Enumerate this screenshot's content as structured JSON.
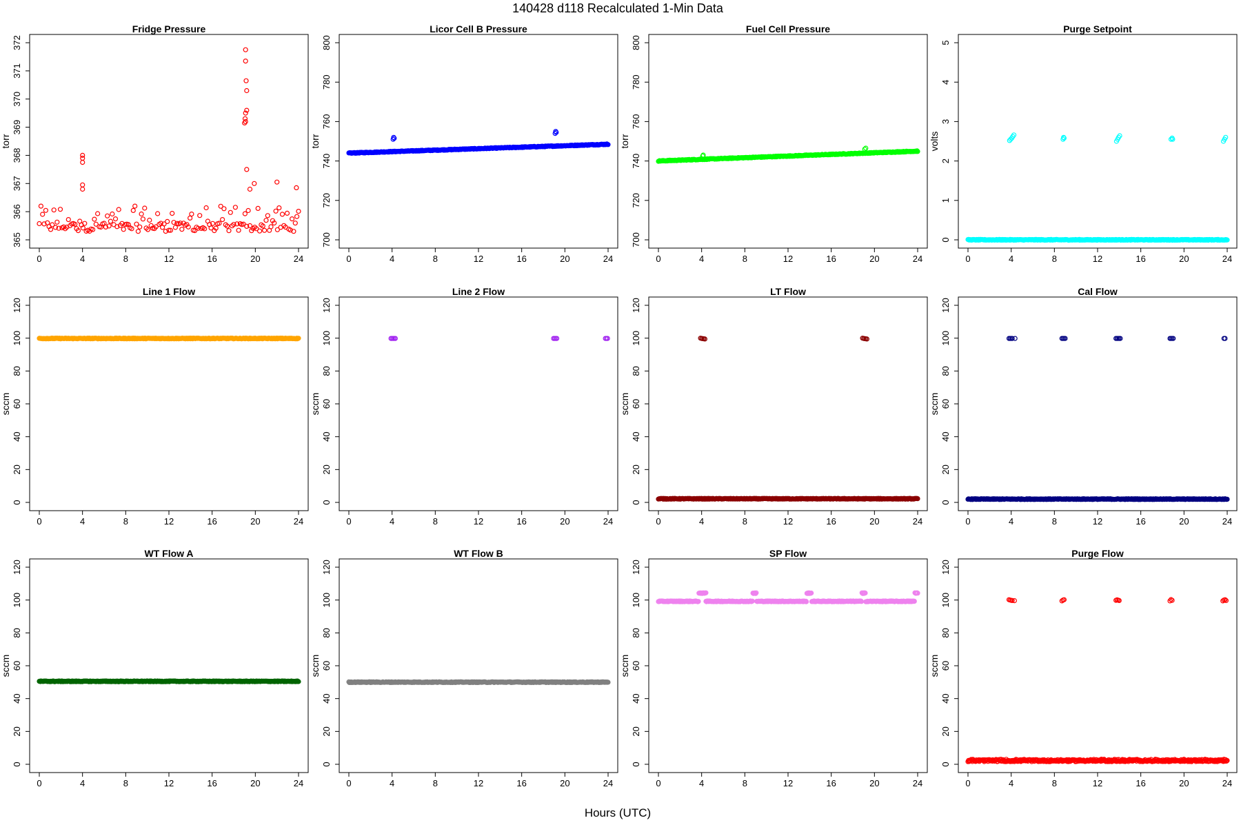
{
  "figure": {
    "title": "140428    d118    Recalculated 1-Min Data",
    "xlabel": "Hours (UTC)"
  },
  "chart_data": [
    {
      "type": "scatter",
      "title": "Fridge Pressure",
      "ylabel": "torr",
      "color": "#ff0000",
      "marker": "open",
      "xlim": [
        0,
        24
      ],
      "ylim": [
        365,
        372
      ],
      "xticks": [
        0,
        4,
        8,
        12,
        16,
        20,
        24
      ],
      "yticks": [
        365,
        366,
        367,
        368,
        369,
        370,
        371,
        372
      ],
      "series": [
        {
          "kind": "band",
          "x": [
            0,
            24
          ],
          "y_center": 365.45,
          "y_spread": 0.3,
          "scatter_spread": 0.9,
          "interval": 0.15
        },
        {
          "kind": "points",
          "x": [
            4.0,
            4.0,
            4.0,
            4.0,
            4.0,
            19.1,
            19.1,
            19.15,
            19.2,
            19.2,
            19.1,
            19.05,
            19.1,
            19.0,
            19.2,
            19.5,
            19.9,
            22.0,
            23.8
          ],
          "y": [
            368.0,
            367.9,
            367.75,
            366.95,
            366.8,
            371.75,
            371.35,
            370.65,
            370.3,
            369.6,
            369.5,
            369.3,
            369.2,
            369.15,
            367.5,
            366.8,
            367.0,
            367.05,
            366.85
          ]
        }
      ]
    },
    {
      "type": "scatter",
      "title": "Licor Cell B Pressure",
      "ylabel": "torr",
      "color": "#0000ff",
      "marker": "open",
      "xlim": [
        0,
        24
      ],
      "ylim": [
        700,
        800
      ],
      "xticks": [
        0,
        4,
        8,
        12,
        16,
        20,
        24
      ],
      "yticks": [
        700,
        720,
        740,
        760,
        780,
        800
      ],
      "series": [
        {
          "kind": "trend",
          "x": [
            0,
            24
          ],
          "y": [
            744,
            748.5
          ],
          "interval": 0.05
        },
        {
          "kind": "points",
          "x": [
            4.1,
            4.15,
            4.2,
            19.1,
            19.15,
            19.2
          ],
          "y": [
            751,
            752,
            751.5,
            754,
            755,
            754.5
          ]
        }
      ]
    },
    {
      "type": "scatter",
      "title": "Fuel Cell Pressure",
      "ylabel": "torr",
      "color": "#00ff00",
      "marker": "open",
      "xlim": [
        0,
        24
      ],
      "ylim": [
        700,
        800
      ],
      "xticks": [
        0,
        4,
        8,
        12,
        16,
        20,
        24
      ],
      "yticks": [
        700,
        720,
        740,
        760,
        780,
        800
      ],
      "series": [
        {
          "kind": "trend",
          "x": [
            0,
            24
          ],
          "y": [
            740,
            745
          ],
          "interval": 0.05
        },
        {
          "kind": "points",
          "x": [
            4.1,
            4.15,
            19.1,
            19.2
          ],
          "y": [
            742.5,
            743,
            746,
            746.5
          ]
        }
      ]
    },
    {
      "type": "scatter",
      "title": "Purge Setpoint",
      "ylabel": "volts",
      "color": "#00ffff",
      "marker": "open",
      "xlim": [
        0,
        24
      ],
      "ylim": [
        0,
        5
      ],
      "xticks": [
        0,
        4,
        8,
        12,
        16,
        20,
        24
      ],
      "yticks": [
        0,
        1,
        2,
        3,
        4,
        5
      ],
      "series": [
        {
          "kind": "trend",
          "x": [
            0,
            24
          ],
          "y": [
            0,
            0
          ],
          "interval": 0.05
        },
        {
          "kind": "points",
          "x": [
            3.85,
            3.95,
            4.05,
            4.15,
            4.25,
            8.8,
            8.85,
            8.9,
            13.75,
            13.85,
            13.95,
            14.05,
            18.8,
            18.9,
            18.95,
            23.65,
            23.75,
            23.85
          ],
          "y": [
            2.52,
            2.55,
            2.58,
            2.62,
            2.66,
            2.55,
            2.6,
            2.58,
            2.5,
            2.55,
            2.6,
            2.64,
            2.55,
            2.58,
            2.55,
            2.5,
            2.55,
            2.6
          ]
        }
      ]
    },
    {
      "type": "scatter",
      "title": "Line 1 Flow",
      "ylabel": "sccm",
      "color": "#ffa500",
      "marker": "open",
      "xlim": [
        0,
        24
      ],
      "ylim": [
        0,
        120
      ],
      "xticks": [
        0,
        4,
        8,
        12,
        16,
        20,
        24
      ],
      "yticks": [
        0,
        20,
        40,
        60,
        80,
        100,
        120
      ],
      "series": [
        {
          "kind": "trend",
          "x": [
            0,
            24
          ],
          "y": [
            99.8,
            99.8
          ],
          "interval": 0.05
        }
      ]
    },
    {
      "type": "scatter",
      "title": "Line 2 Flow",
      "ylabel": "sccm",
      "color": "#a020f0",
      "marker": "open",
      "xlim": [
        0,
        24
      ],
      "ylim": [
        0,
        120
      ],
      "xticks": [
        0,
        4,
        8,
        12,
        16,
        20,
        24
      ],
      "yticks": [
        0,
        20,
        40,
        60,
        80,
        100,
        120
      ],
      "series": [
        {
          "kind": "points",
          "x": [
            3.9,
            4.0,
            4.1,
            4.2,
            4.3,
            18.95,
            19.05,
            19.15,
            19.25,
            23.75,
            23.85,
            23.95
          ],
          "y": [
            99.8,
            99.8,
            99.8,
            99.8,
            99.8,
            99.8,
            99.8,
            99.8,
            99.8,
            99.8,
            99.8,
            99.8
          ]
        }
      ]
    },
    {
      "type": "scatter",
      "title": "LT Flow",
      "ylabel": "sccm",
      "color": "#8b0000",
      "marker": "open",
      "xlim": [
        0,
        24
      ],
      "ylim": [
        0,
        120
      ],
      "xticks": [
        0,
        4,
        8,
        12,
        16,
        20,
        24
      ],
      "yticks": [
        0,
        20,
        40,
        60,
        80,
        100,
        120
      ],
      "series": [
        {
          "kind": "trend",
          "x": [
            0,
            24
          ],
          "y": [
            2.2,
            2.2
          ],
          "interval": 0.05
        },
        {
          "kind": "points",
          "x": [
            3.9,
            4.0,
            4.1,
            4.2,
            4.3,
            18.9,
            19.0,
            19.1,
            19.2,
            19.3
          ],
          "y": [
            100,
            99.8,
            99.7,
            99.6,
            99.5,
            100,
            99.8,
            99.7,
            99.6,
            99.5
          ]
        }
      ]
    },
    {
      "type": "scatter",
      "title": "Cal Flow",
      "ylabel": "sccm",
      "color": "#000080",
      "marker": "open",
      "xlim": [
        0,
        24
      ],
      "ylim": [
        0,
        120
      ],
      "xticks": [
        0,
        4,
        8,
        12,
        16,
        20,
        24
      ],
      "yticks": [
        0,
        20,
        40,
        60,
        80,
        100,
        120
      ],
      "series": [
        {
          "kind": "trend",
          "x": [
            0,
            24
          ],
          "y": [
            2.0,
            2.0
          ],
          "interval": 0.05
        },
        {
          "kind": "points",
          "x": [
            3.8,
            3.9,
            4.0,
            4.1,
            4.35,
            8.7,
            8.8,
            8.9,
            9.0,
            13.7,
            13.8,
            13.9,
            14.0,
            14.1,
            18.7,
            18.8,
            18.9,
            19.0,
            23.7,
            23.8
          ],
          "y": [
            99.8,
            99.8,
            99.8,
            99.8,
            99.8,
            99.8,
            99.8,
            99.8,
            99.8,
            99.8,
            99.8,
            99.8,
            99.8,
            99.8,
            99.8,
            99.8,
            99.8,
            99.8,
            99.8,
            99.8
          ]
        }
      ]
    },
    {
      "type": "scatter",
      "title": "WT Flow A",
      "ylabel": "sccm",
      "color": "#006400",
      "marker": "open",
      "xlim": [
        0,
        24
      ],
      "ylim": [
        0,
        120
      ],
      "xticks": [
        0,
        4,
        8,
        12,
        16,
        20,
        24
      ],
      "yticks": [
        0,
        20,
        40,
        60,
        80,
        100,
        120
      ],
      "series": [
        {
          "kind": "trend",
          "x": [
            0,
            24
          ],
          "y": [
            50.5,
            50.5
          ],
          "interval": 0.05
        }
      ]
    },
    {
      "type": "scatter",
      "title": "WT Flow B",
      "ylabel": "sccm",
      "color": "#808080",
      "marker": "open",
      "xlim": [
        0,
        24
      ],
      "ylim": [
        0,
        120
      ],
      "xticks": [
        0,
        4,
        8,
        12,
        16,
        20,
        24
      ],
      "yticks": [
        0,
        20,
        40,
        60,
        80,
        100,
        120
      ],
      "series": [
        {
          "kind": "trend",
          "x": [
            0,
            24
          ],
          "y": [
            50.0,
            50.0
          ],
          "interval": 0.05
        }
      ]
    },
    {
      "type": "scatter",
      "title": "SP Flow",
      "ylabel": "sccm",
      "color": "#ee82ee",
      "marker": "open",
      "xlim": [
        0,
        24
      ],
      "ylim": [
        0,
        120
      ],
      "xticks": [
        0,
        4,
        8,
        12,
        16,
        20,
        24
      ],
      "yticks": [
        0,
        20,
        40,
        60,
        80,
        100,
        120
      ],
      "series": [
        {
          "kind": "segments",
          "y": 99.2,
          "interval": 0.05,
          "ranges": [
            [
              0,
              3.7
            ],
            [
              4.4,
              8.7
            ],
            [
              9.1,
              13.7
            ],
            [
              14.2,
              18.8
            ],
            [
              19.2,
              23.7
            ]
          ]
        },
        {
          "kind": "segments",
          "y": 104.2,
          "interval": 0.05,
          "ranges": [
            [
              3.75,
              4.4
            ],
            [
              8.75,
              9.05
            ],
            [
              13.75,
              14.15
            ],
            [
              18.85,
              19.15
            ],
            [
              23.75,
              24.0
            ]
          ]
        }
      ]
    },
    {
      "type": "scatter",
      "title": "Purge Flow",
      "ylabel": "sccm",
      "color": "#ff0000",
      "marker": "open",
      "xlim": [
        0,
        24
      ],
      "ylim": [
        0,
        120
      ],
      "xticks": [
        0,
        4,
        8,
        12,
        16,
        20,
        24
      ],
      "yticks": [
        0,
        20,
        40,
        60,
        80,
        100,
        120
      ],
      "series": [
        {
          "kind": "band",
          "x": [
            0,
            24
          ],
          "y_center": 2.2,
          "y_spread": 1.2,
          "scatter_spread": 1.5,
          "interval": 0.05
        },
        {
          "kind": "points",
          "x": [
            3.8,
            3.9,
            4.0,
            4.1,
            4.3,
            8.7,
            8.8,
            8.9,
            13.7,
            13.8,
            13.9,
            14.0,
            18.7,
            18.8,
            18.9,
            23.6,
            23.7,
            23.8,
            23.9
          ],
          "y": [
            100.2,
            100.0,
            99.8,
            99.7,
            99.6,
            99.5,
            100.0,
            100.2,
            99.8,
            100.1,
            99.9,
            99.7,
            99.5,
            100.3,
            99.8,
            99.5,
            100.0,
            100.2,
            99.7
          ]
        }
      ]
    }
  ]
}
